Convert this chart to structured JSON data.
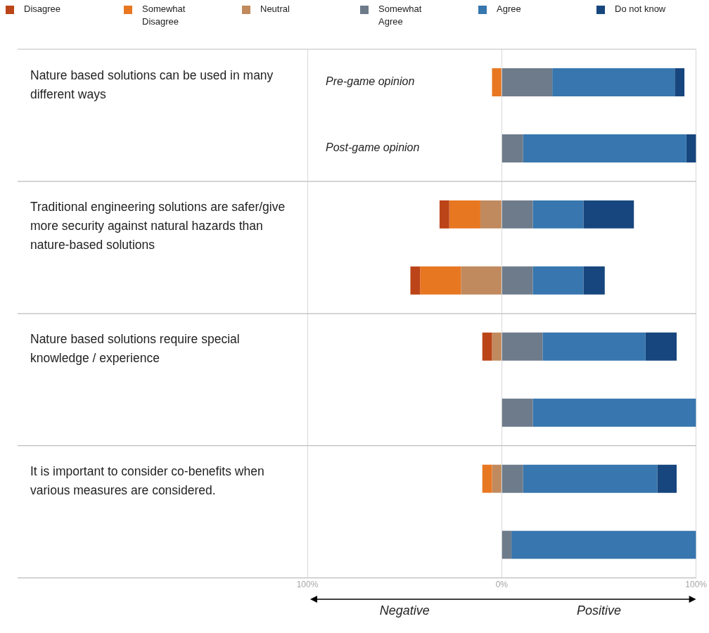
{
  "chart_data": {
    "type": "bar",
    "orientation": "horizontal",
    "stacked": true,
    "categories": [
      "Pre-game opinion",
      "Post-game opinion",
      null,
      null,
      null,
      null,
      null,
      null
    ],
    "series": [
      {
        "name": "Disagree",
        "color": "#bb4518",
        "values": [
          null,
          null,
          -5,
          -5,
          -5,
          null,
          null,
          null
        ]
      },
      {
        "name": "Somewhat Disagree",
        "color": "#e87722",
        "values": [
          -5,
          null,
          -16,
          -21,
          null,
          null,
          -5,
          null
        ]
      },
      {
        "name": "Neutral",
        "color": "#c08a5e",
        "values": [
          null,
          null,
          -11,
          -21,
          -5,
          null,
          -5,
          null
        ]
      },
      {
        "name": "Somewhat Agree",
        "color": "#6e7b8b",
        "values": [
          26,
          11,
          16,
          16,
          21,
          16,
          11,
          5
        ]
      },
      {
        "name": "Agree",
        "color": "#3776ae",
        "values": [
          63,
          84,
          26,
          26,
          53,
          84,
          69,
          95
        ]
      },
      {
        "name": "Do not know",
        "color": "#17467e",
        "values": [
          5,
          5,
          26,
          11,
          16,
          null,
          10,
          null
        ]
      }
    ],
    "xlim": [
      -100,
      100
    ],
    "xticks": [
      {
        "value": -100,
        "label": "100%"
      },
      {
        "value": 0,
        "label": "0%"
      },
      {
        "value": 100,
        "label": "100%"
      }
    ],
    "grid": "x",
    "legend": "top",
    "annotations": [
      "Nature based solutions can be used in many different ways",
      "Traditional engineering solutions are safer/give more security against natural hazards than nature-based solutions",
      "Nature based solutions require special knowledge / experience",
      "It is important to consider co-benefits when various measures are considered.",
      "Negative",
      "Positive"
    ]
  }
}
